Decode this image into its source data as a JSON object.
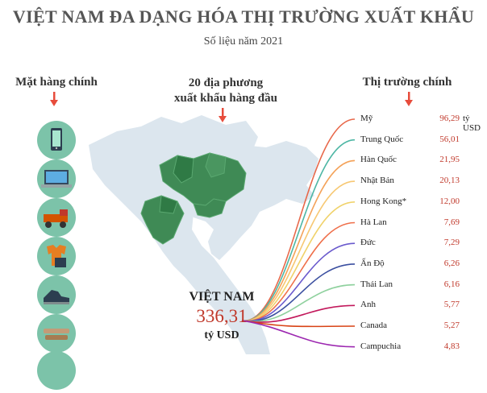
{
  "header": {
    "title": "VIỆT NAM ĐA DẠNG HÓA THỊ TRƯỜNG XUẤT KHẨU",
    "subtitle": "Số liệu năm 2021"
  },
  "columns": {
    "products_heading": "Mặt hàng chính",
    "regions_heading_line1": "20 địa phương",
    "regions_heading_line2": "xuất khẩu hàng đầu",
    "markets_heading": "Thị trường chính"
  },
  "colors": {
    "accent": "#e74c3c",
    "value_red": "#c0392b",
    "product_circle": "#7cc3a9",
    "map_base": "#dce6ee",
    "map_highlight": "#3f8a55"
  },
  "products": [
    {
      "icon": "smartphone-icon"
    },
    {
      "icon": "laptop-icon"
    },
    {
      "icon": "machinery-icon"
    },
    {
      "icon": "textiles-icon"
    },
    {
      "icon": "footwear-icon"
    },
    {
      "icon": "wood-icon"
    },
    {
      "icon": "seafood-icon"
    }
  ],
  "total": {
    "label": "VIỆT NAM",
    "value": "336,31",
    "unit": "tỷ USD"
  },
  "markets": [
    {
      "name": "Mỹ",
      "value": "96,29",
      "unit": "tỷ USD",
      "color": "#e8684a"
    },
    {
      "name": "Trung Quốc",
      "value": "56,01",
      "color": "#4db6a4"
    },
    {
      "name": "Hàn Quốc",
      "value": "21,95",
      "color": "#f4a259"
    },
    {
      "name": "Nhật Bản",
      "value": "20,13",
      "color": "#f7c873"
    },
    {
      "name": "Hong Kong*",
      "value": "12,00",
      "color": "#f0d26a"
    },
    {
      "name": "Hà Lan",
      "value": "7,69",
      "color": "#ef6f4a"
    },
    {
      "name": "Đức",
      "value": "7,29",
      "color": "#6a5acd"
    },
    {
      "name": "Ấn Độ",
      "value": "6,26",
      "color": "#3b4fa0"
    },
    {
      "name": "Thái Lan",
      "value": "6,16",
      "color": "#8fd19e"
    },
    {
      "name": "Anh",
      "value": "5,77",
      "color": "#c2185b"
    },
    {
      "name": "Canada",
      "value": "5,27",
      "color": "#d84315"
    },
    {
      "name": "Campuchia",
      "value": "4,83",
      "color": "#9c27b0"
    }
  ]
}
